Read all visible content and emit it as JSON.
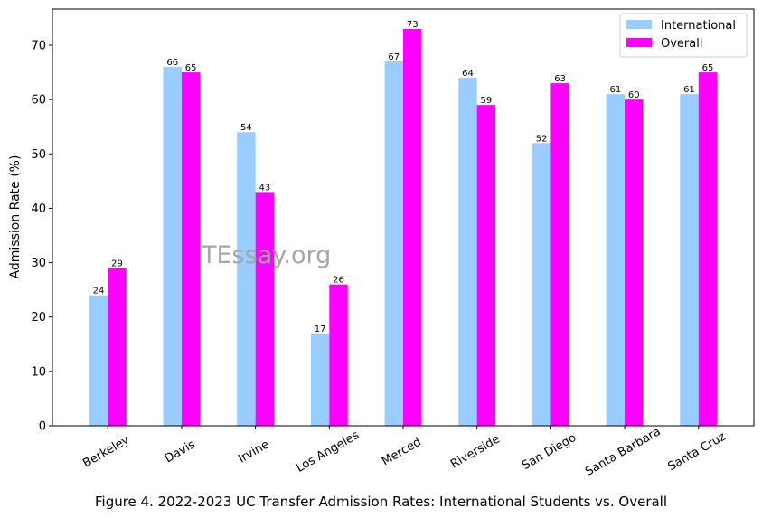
{
  "chart_data": {
    "type": "bar",
    "categories": [
      "Berkeley",
      "Davis",
      "Irvine",
      "Los Angeles",
      "Merced",
      "Riverside",
      "San Diego",
      "Santa Barbara",
      "Santa Cruz"
    ],
    "series": [
      {
        "name": "International",
        "color": "#99ccff",
        "values": [
          24,
          66,
          54,
          17,
          67,
          64,
          52,
          61,
          61
        ]
      },
      {
        "name": "Overall",
        "color": "#ff00ff",
        "values": [
          29,
          65,
          43,
          26,
          73,
          59,
          63,
          60,
          65
        ]
      }
    ],
    "title": "",
    "xlabel": "",
    "ylabel": "Admission Rate (%)",
    "ylim": [
      0,
      76.65
    ],
    "yticks": [
      0,
      10,
      20,
      30,
      40,
      50,
      60,
      70
    ],
    "legend_position": "top-right",
    "grid": false,
    "xtick_rotation": 30
  },
  "watermark": "TEssay.org",
  "caption": "Figure 4. 2022-2023 UC Transfer Admission Rates: International Students vs. Overall"
}
